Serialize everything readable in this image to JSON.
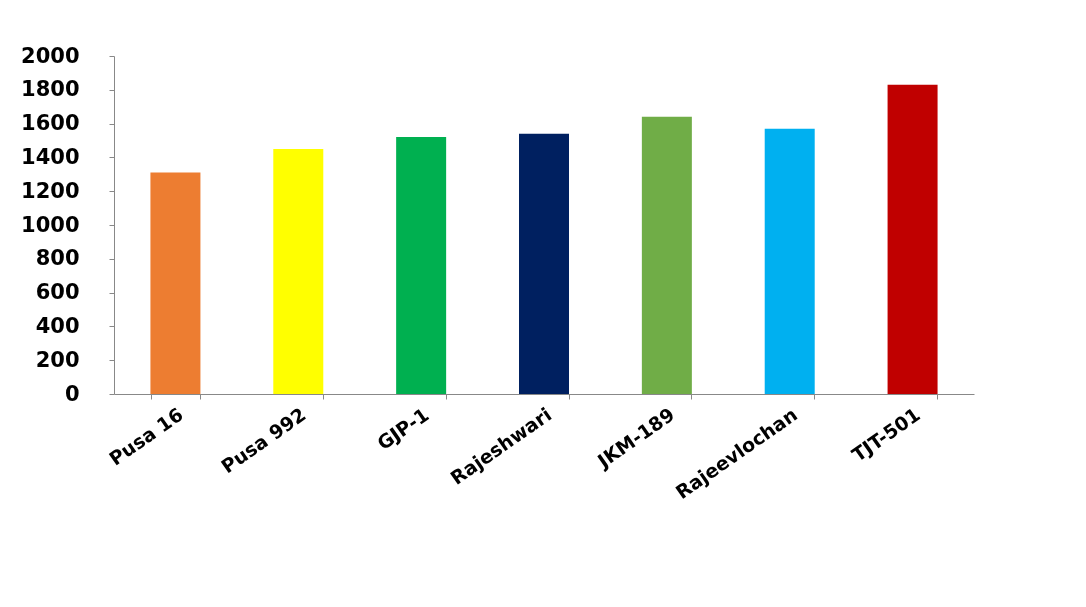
{
  "chart_data": {
    "type": "bar",
    "categories": [
      "Pusa 16",
      "Pusa 992",
      "GJP-1",
      "Rajeshwari",
      "JKM-189",
      "Rajeevlochan",
      "TJT-501"
    ],
    "values": [
      1310,
      1450,
      1520,
      1540,
      1640,
      1570,
      1830
    ],
    "colors": [
      "#ed7d31",
      "#ffff00",
      "#00b050",
      "#002060",
      "#70ad47",
      "#00b0f0",
      "#c00000"
    ],
    "ylim": [
      0,
      2000
    ],
    "yticks": [
      0,
      200,
      400,
      600,
      800,
      1000,
      1200,
      1400,
      1600,
      1800,
      2000
    ],
    "grid": false,
    "legend": false
  }
}
